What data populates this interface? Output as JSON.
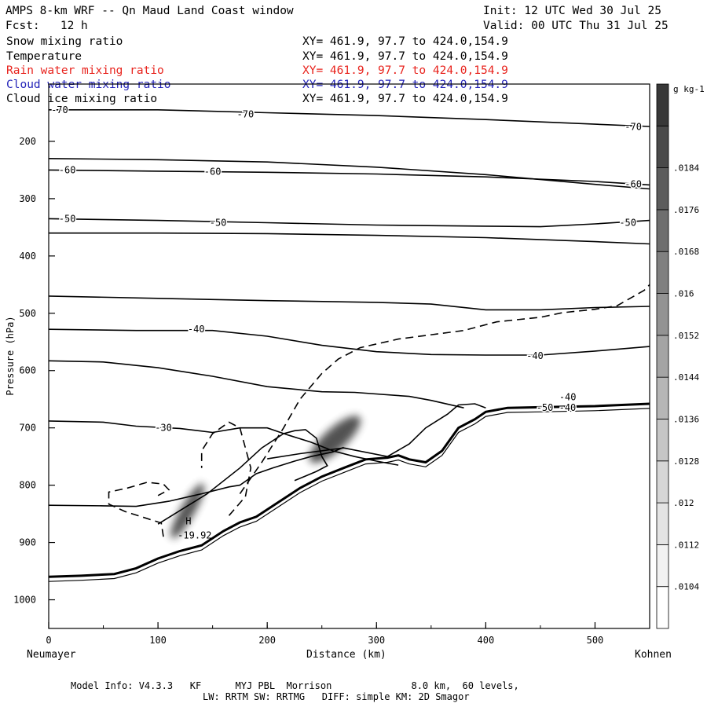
{
  "header": {
    "title": "AMPS 8-km WRF -- Qn Maud Land Coast window",
    "init": "Init: 12 UTC Wed 30 Jul 25",
    "fcst": "Fcst:   12 h",
    "valid": "Valid: 00 UTC Thu 31 Jul 25"
  },
  "fields": [
    {
      "name": "Snow mixing ratio",
      "xy": "XY= 461.9, 97.7 to 424.0,154.9",
      "color": "#000000"
    },
    {
      "name": "Temperature",
      "xy": "XY= 461.9, 97.7 to 424.0,154.9",
      "color": "#000000"
    },
    {
      "name": "Rain water mixing ratio",
      "xy": "XY= 461.9, 97.7 to 424.0,154.9",
      "color": "#e8231d"
    },
    {
      "name": "Cloud water mixing ratio",
      "xy": "XY= 461.9, 97.7 to 424.0,154.9",
      "color": "#2323b8"
    },
    {
      "name": "Cloud ice mixing ratio",
      "xy": "XY= 461.9, 97.7 to 424.0,154.9",
      "color": "#000000"
    }
  ],
  "axes": {
    "left_endpoint": "Neumayer",
    "right_endpoint": "Kohnen",
    "xlabel": "Distance (km)",
    "ylabel": "Pressure (hPa)"
  },
  "footer": {
    "line1": "Model Info: V4.3.3   KF      MYJ PBL  Morrison              8.0 km,  60 levels,",
    "line2": "LW: RRTM SW: RRTMG   DIFF: simple KM: 2D Smagor"
  },
  "chart_data": {
    "type": "cross-section",
    "x": {
      "label": "Distance (km)",
      "range": [
        0,
        550
      ],
      "ticks": [
        0,
        100,
        200,
        300,
        400,
        500
      ]
    },
    "y": {
      "label": "Pressure (hPa)",
      "range": [
        100,
        1050
      ],
      "inverted": true,
      "ticks": [
        200,
        300,
        400,
        500,
        600,
        700,
        800,
        900,
        1000
      ]
    },
    "colorbar": {
      "unit": "g kg-1",
      "levels": [
        ".0104",
        ".0112",
        ".012",
        ".0128",
        ".0136",
        ".0144",
        ".0152",
        ".016",
        ".0168",
        ".0176",
        ".0184"
      ],
      "shades": [
        "#ffffff",
        "#f2f2f2",
        "#e4e4e4",
        "#d6d6d6",
        "#c6c6c6",
        "#b6b6b6",
        "#a4a4a4",
        "#939393",
        "#808080",
        "#6e6e6e",
        "#5c5c5c",
        "#4a4a4a",
        "#383838"
      ]
    },
    "isotherms": [
      {
        "label": "-70",
        "label_at": [
          [
            10,
            145
          ],
          [
            180,
            153
          ],
          [
            535,
            175
          ]
        ],
        "points": [
          [
            0,
            145
          ],
          [
            100,
            145
          ],
          [
            200,
            150
          ],
          [
            300,
            155
          ],
          [
            400,
            162
          ],
          [
            500,
            170
          ],
          [
            550,
            174
          ]
        ]
      },
      {
        "label": "",
        "label_at": [],
        "points": [
          [
            0,
            230
          ],
          [
            100,
            232
          ],
          [
            200,
            236
          ],
          [
            300,
            245
          ],
          [
            400,
            258
          ],
          [
            500,
            275
          ],
          [
            550,
            283
          ]
        ]
      },
      {
        "label": "-60",
        "label_at": [
          [
            17,
            250
          ],
          [
            150,
            253
          ],
          [
            535,
            275
          ]
        ],
        "points": [
          [
            0,
            250
          ],
          [
            100,
            252
          ],
          [
            200,
            254
          ],
          [
            300,
            257
          ],
          [
            400,
            262
          ],
          [
            500,
            270
          ],
          [
            550,
            276
          ]
        ]
      },
      {
        "label": "",
        "label_at": [],
        "points": [
          [
            0,
            360
          ],
          [
            100,
            360
          ],
          [
            200,
            361
          ],
          [
            300,
            364
          ],
          [
            400,
            368
          ],
          [
            500,
            375
          ],
          [
            550,
            379
          ]
        ]
      },
      {
        "label": "-50",
        "label_at": [
          [
            17,
            335
          ],
          [
            155,
            342
          ],
          [
            530,
            342
          ]
        ],
        "points": [
          [
            0,
            335
          ],
          [
            100,
            338
          ],
          [
            200,
            342
          ],
          [
            300,
            346
          ],
          [
            400,
            348
          ],
          [
            450,
            349
          ],
          [
            500,
            344
          ],
          [
            550,
            338
          ]
        ]
      },
      {
        "label": "",
        "label_at": [],
        "points": [
          [
            0,
            470
          ],
          [
            100,
            474
          ],
          [
            200,
            478
          ],
          [
            300,
            481
          ],
          [
            350,
            484
          ],
          [
            400,
            494
          ],
          [
            450,
            494
          ],
          [
            500,
            490
          ],
          [
            550,
            488
          ]
        ]
      },
      {
        "label": "-40",
        "label_at": [
          [
            135,
            528
          ],
          [
            445,
            574
          ],
          [
            475,
            646
          ]
        ],
        "points": [
          [
            0,
            528
          ],
          [
            80,
            530
          ],
          [
            150,
            530
          ],
          [
            200,
            540
          ],
          [
            250,
            556
          ],
          [
            300,
            567
          ],
          [
            350,
            572
          ],
          [
            400,
            573
          ],
          [
            450,
            573
          ],
          [
            500,
            566
          ],
          [
            550,
            558
          ]
        ]
      },
      {
        "label": "",
        "label_at": [],
        "points": [
          [
            0,
            583
          ],
          [
            50,
            585
          ],
          [
            100,
            595
          ],
          [
            150,
            610
          ],
          [
            200,
            628
          ],
          [
            250,
            637
          ],
          [
            280,
            638
          ],
          [
            330,
            645
          ],
          [
            350,
            652
          ],
          [
            380,
            665
          ]
        ]
      },
      {
        "label": "-30",
        "label_at": [
          [
            105,
            700
          ]
        ],
        "points": [
          [
            0,
            688
          ],
          [
            50,
            690
          ],
          [
            80,
            697
          ],
          [
            120,
            701
          ],
          [
            150,
            708
          ],
          [
            175,
            700
          ],
          [
            200,
            700
          ],
          [
            220,
            713
          ],
          [
            240,
            725
          ],
          [
            260,
            740
          ],
          [
            280,
            750
          ],
          [
            300,
            758
          ],
          [
            320,
            765
          ]
        ]
      },
      {
        "label": "",
        "label_at": [],
        "points": [
          [
            0,
            835
          ],
          [
            50,
            836
          ],
          [
            80,
            837
          ],
          [
            110,
            828
          ],
          [
            140,
            815
          ],
          [
            165,
            803
          ],
          [
            175,
            800
          ],
          [
            190,
            780
          ],
          [
            205,
            770
          ],
          [
            225,
            758
          ],
          [
            240,
            750
          ],
          [
            260,
            742
          ],
          [
            270,
            734
          ]
        ]
      }
    ],
    "terrain": {
      "label": "-50  -40",
      "points": [
        [
          0,
          960
        ],
        [
          30,
          958
        ],
        [
          60,
          955
        ],
        [
          80,
          945
        ],
        [
          100,
          928
        ],
        [
          120,
          915
        ],
        [
          140,
          905
        ],
        [
          160,
          880
        ],
        [
          175,
          865
        ],
        [
          190,
          855
        ],
        [
          210,
          830
        ],
        [
          230,
          805
        ],
        [
          250,
          785
        ],
        [
          270,
          770
        ],
        [
          290,
          755
        ],
        [
          310,
          752
        ],
        [
          320,
          748
        ],
        [
          330,
          755
        ],
        [
          345,
          760
        ],
        [
          360,
          740
        ],
        [
          375,
          700
        ],
        [
          390,
          685
        ],
        [
          400,
          672
        ],
        [
          420,
          665
        ],
        [
          450,
          664
        ],
        [
          500,
          662
        ],
        [
          550,
          658
        ]
      ]
    },
    "snow_contours": [
      {
        "points": [
          [
            100,
            868
          ],
          [
            145,
            815
          ],
          [
            175,
            770
          ],
          [
            195,
            735
          ],
          [
            215,
            710
          ],
          [
            225,
            705
          ],
          [
            235,
            703
          ],
          [
            245,
            718
          ],
          [
            250,
            750
          ],
          [
            255,
            766
          ],
          [
            245,
            776
          ],
          [
            235,
            784
          ],
          [
            225,
            792
          ]
        ]
      },
      {
        "points": [
          [
            200,
            754
          ],
          [
            230,
            745
          ],
          [
            270,
            735
          ],
          [
            310,
            750
          ],
          [
            330,
            728
          ],
          [
            345,
            700
          ],
          [
            365,
            676
          ],
          [
            375,
            660
          ],
          [
            390,
            658
          ],
          [
            400,
            665
          ]
        ]
      }
    ],
    "cloud_ice_contours": [
      {
        "dashed": true,
        "points": [
          [
            105,
            890
          ],
          [
            103,
            866
          ],
          [
            70,
            846
          ],
          [
            55,
            833
          ],
          [
            55,
            812
          ],
          [
            72,
            805
          ],
          [
            90,
            795
          ],
          [
            105,
            798
          ],
          [
            110,
            808
          ],
          [
            100,
            818
          ]
        ]
      },
      {
        "dashed": true,
        "points": [
          [
            165,
            853
          ],
          [
            180,
            820
          ],
          [
            185,
            770
          ],
          [
            180,
            735
          ],
          [
            175,
            700
          ],
          [
            165,
            690
          ],
          [
            150,
            710
          ],
          [
            140,
            740
          ],
          [
            140,
            770
          ]
        ]
      },
      {
        "dashed": true,
        "points": [
          [
            175,
            815
          ],
          [
            195,
            760
          ],
          [
            215,
            700
          ],
          [
            230,
            650
          ],
          [
            250,
            605
          ],
          [
            265,
            580
          ],
          [
            285,
            560
          ],
          [
            320,
            545
          ],
          [
            380,
            530
          ],
          [
            410,
            515
          ],
          [
            450,
            507
          ],
          [
            470,
            499
          ],
          [
            500,
            493
          ],
          [
            520,
            487
          ],
          [
            545,
            460
          ],
          [
            550,
            450
          ]
        ]
      }
    ],
    "shading_blobs": [
      {
        "cx": 127,
        "cy": 845,
        "rx": 9,
        "ry": 40,
        "rotate": 30,
        "level": 11
      },
      {
        "cx": 262,
        "cy": 720,
        "rx": 14,
        "ry": 42,
        "rotate": 48,
        "level": 11
      }
    ],
    "extrema": [
      {
        "symbol": "H",
        "value": "-19.92",
        "x": 125,
        "y": 882
      }
    ]
  }
}
